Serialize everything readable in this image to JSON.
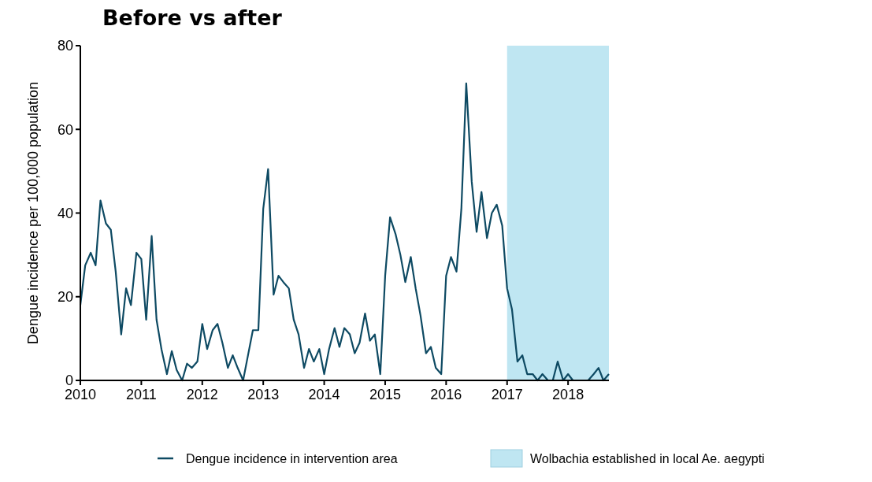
{
  "chart_data": {
    "type": "line",
    "title": "Before vs after",
    "ylabel": "Dengue incidence per 100,000 population",
    "x": [
      2010,
      2010.08,
      2010.17,
      2010.25,
      2010.33,
      2010.42,
      2010.5,
      2010.58,
      2010.67,
      2010.75,
      2010.83,
      2010.92,
      2011,
      2011.08,
      2011.17,
      2011.25,
      2011.33,
      2011.42,
      2011.5,
      2011.58,
      2011.67,
      2011.75,
      2011.83,
      2011.92,
      2012,
      2012.08,
      2012.17,
      2012.25,
      2012.33,
      2012.42,
      2012.5,
      2012.58,
      2012.67,
      2012.75,
      2012.83,
      2012.92,
      2013,
      2013.08,
      2013.17,
      2013.25,
      2013.33,
      2013.42,
      2013.5,
      2013.58,
      2013.67,
      2013.75,
      2013.83,
      2013.92,
      2014,
      2014.08,
      2014.17,
      2014.25,
      2014.33,
      2014.42,
      2014.5,
      2014.58,
      2014.67,
      2014.75,
      2014.83,
      2014.92,
      2015,
      2015.08,
      2015.17,
      2015.25,
      2015.33,
      2015.42,
      2015.5,
      2015.58,
      2015.67,
      2015.75,
      2015.83,
      2015.92,
      2016,
      2016.08,
      2016.17,
      2016.25,
      2016.33,
      2016.42,
      2016.5,
      2016.58,
      2016.67,
      2016.75,
      2016.83,
      2016.92,
      2017,
      2017.08,
      2017.17,
      2017.25,
      2017.33,
      2017.42,
      2017.5,
      2017.58,
      2017.67,
      2017.75,
      2017.83,
      2017.92,
      2018,
      2018.08,
      2018.17,
      2018.25,
      2018.33,
      2018.42,
      2018.5,
      2018.58,
      2018.67
    ],
    "series": [
      {
        "name": "Dengue incidence in intervention area",
        "color": "#0e4a63",
        "values": [
          18,
          27.5,
          30.5,
          27.5,
          43,
          37.5,
          36,
          26,
          11,
          22,
          18,
          30.5,
          29,
          14.5,
          34.5,
          14.5,
          7.5,
          1.5,
          7,
          2.5,
          0,
          4,
          3,
          4.5,
          13.5,
          7.5,
          12,
          13.5,
          9,
          3,
          6,
          3,
          0,
          6,
          12,
          12,
          41,
          50.5,
          20.5,
          25,
          23.5,
          22,
          14.5,
          11,
          3,
          7.5,
          4.5,
          7.5,
          1.5,
          7.5,
          12.5,
          8,
          12.5,
          11,
          6.5,
          9,
          16,
          9.5,
          11,
          1.5,
          25,
          39,
          35,
          30,
          23.5,
          29.5,
          22,
          15.5,
          6.5,
          8,
          3,
          1.5,
          25,
          29.5,
          26,
          41,
          71,
          47.5,
          35.5,
          45,
          34,
          40,
          42,
          37,
          22,
          17,
          4.5,
          6,
          1.5,
          1.5,
          0,
          1.5,
          0,
          0,
          4.5,
          0,
          1.5,
          0,
          0,
          0,
          0,
          1.5,
          3,
          0,
          1.5
        ]
      }
    ],
    "xlim": [
      2010,
      2018.67
    ],
    "xticks": [
      2010,
      2011,
      2012,
      2013,
      2014,
      2015,
      2016,
      2017,
      2018
    ],
    "ylim": [
      0,
      80
    ],
    "yticks": [
      0,
      20,
      40,
      60,
      80
    ],
    "bands": [
      {
        "axis": "x",
        "from": 2017,
        "to": 2018.67,
        "label": "Wolbachia established in local Ae. aegypti",
        "color": "#bfe6f2"
      }
    ],
    "legend": "bottom",
    "grid": false
  }
}
